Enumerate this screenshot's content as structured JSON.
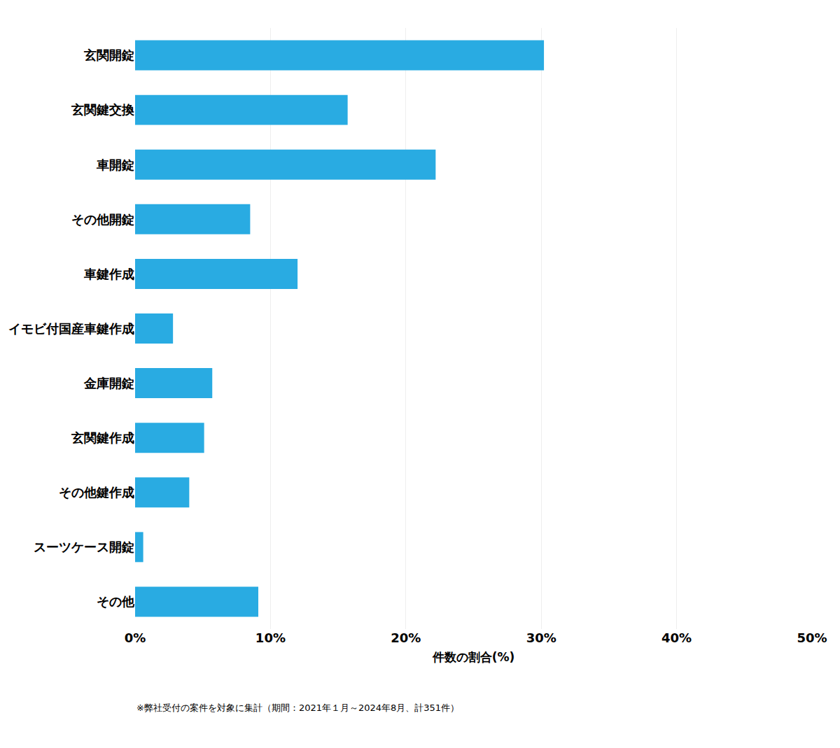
{
  "chart_data": {
    "type": "bar",
    "orientation": "horizontal",
    "categories": [
      "その他",
      "スーツケース開錠",
      "その他鍵作成",
      "玄関鍵作成",
      "金庫開錠",
      "イモビ付国産車鍵作成",
      "車鍵作成",
      "その他開錠",
      "車開錠",
      "玄関鍵交換",
      "玄関開錠"
    ],
    "values": [
      9.1,
      0.6,
      4.0,
      5.1,
      5.7,
      2.8,
      12.0,
      8.5,
      22.2,
      15.7,
      30.2
    ],
    "color": "#29ABE2",
    "xlabel": "件数の割合(%)",
    "xlim": [
      0,
      50
    ],
    "xticks": [
      {
        "value": 0,
        "label": "0%"
      },
      {
        "value": 10,
        "label": "10%"
      },
      {
        "value": 20,
        "label": "20%"
      },
      {
        "value": 30,
        "label": "30%"
      },
      {
        "value": 40,
        "label": "40%"
      },
      {
        "value": 50,
        "label": "50%"
      }
    ],
    "grid": true,
    "annotations": [
      "※弊社受付の案件を対象に集計（期間：2021年１月～2024年8月、計351件）"
    ]
  }
}
